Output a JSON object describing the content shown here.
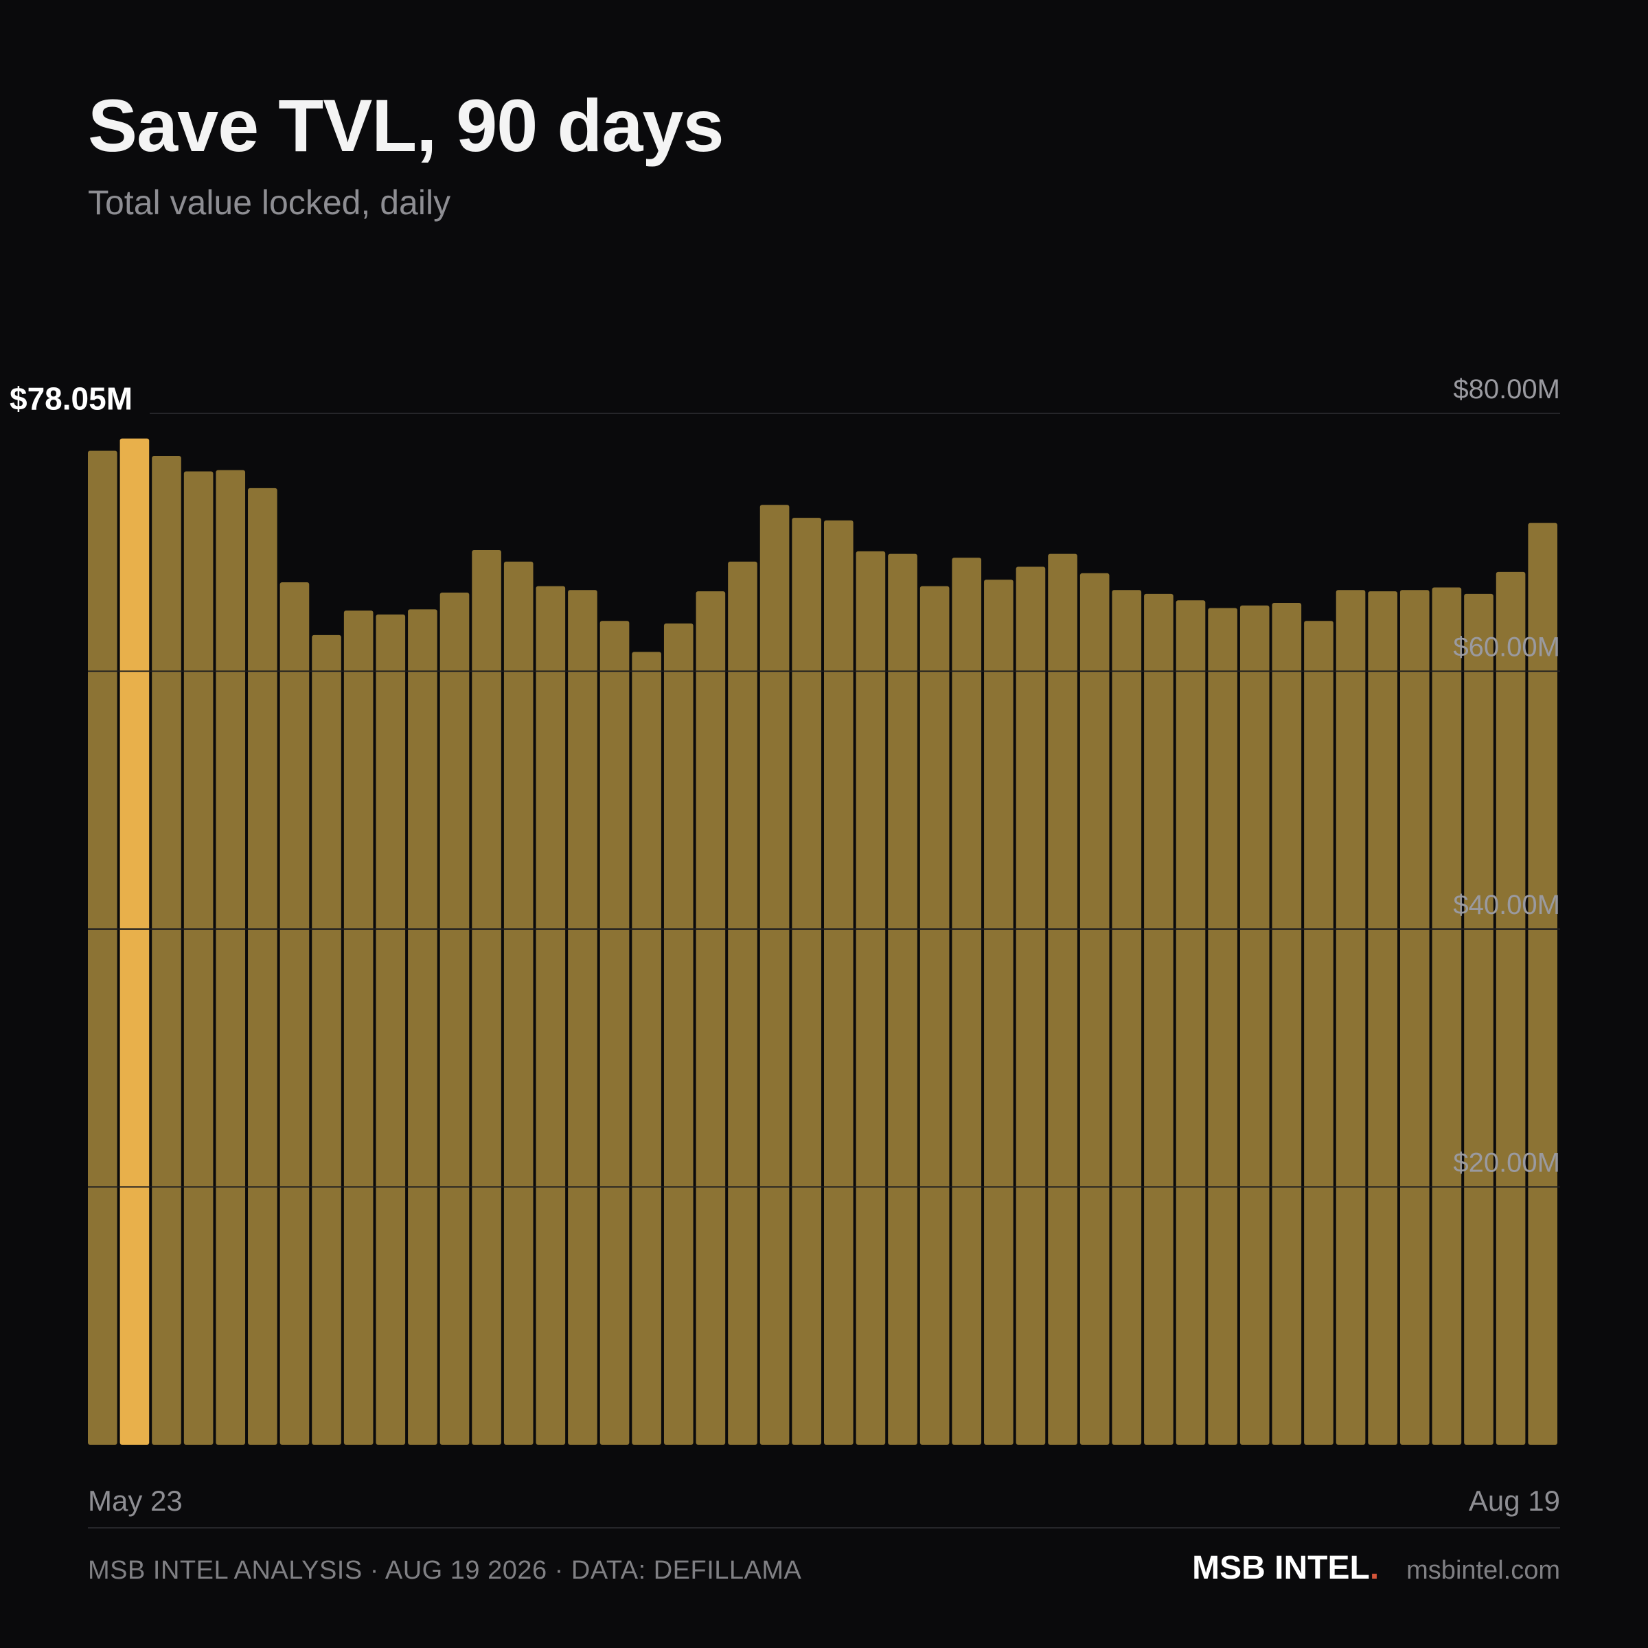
{
  "header": {
    "title": "Save TVL, 90 days",
    "subtitle": "Total value locked, daily"
  },
  "chart_data": {
    "type": "bar",
    "title": "Save TVL, 90 days",
    "subtitle": "Total value locked, daily",
    "values": [
      77.1,
      78.05,
      76.7,
      75.5,
      75.6,
      74.2,
      66.9,
      62.8,
      64.7,
      64.4,
      64.8,
      66.1,
      69.4,
      68.5,
      66.6,
      66.3,
      63.9,
      61.5,
      63.7,
      66.2,
      68.5,
      72.9,
      71.9,
      71.7,
      69.3,
      69.1,
      66.6,
      68.8,
      67.1,
      68.1,
      69.1,
      67.6,
      66.3,
      66.0,
      65.5,
      64.9,
      65.1,
      65.3,
      63.9,
      66.3,
      66.2,
      66.3,
      66.5,
      66.0,
      67.7,
      71.5
    ],
    "x_labels": [
      "May 23",
      "Aug 19"
    ],
    "highlight_index": 1,
    "highlight_label": "$78.05M",
    "y_ticks": [
      {
        "value": 20,
        "label": "$20.00M"
      },
      {
        "value": 40,
        "label": "$40.00M"
      },
      {
        "value": 60,
        "label": "$60.00M"
      },
      {
        "value": 80,
        "label": "$80.00M"
      }
    ],
    "ylim": [
      0,
      80
    ],
    "grid": true,
    "colors": {
      "bar": "#8c7334",
      "highlight": "#e8b04b",
      "grid": "#2b2b2f"
    }
  },
  "footer": {
    "source": "MSB INTEL ANALYSIS · AUG 19 2026 · DATA: DEFILLAMA",
    "brand": "MSB INTEL",
    "brand_dot": ".",
    "site": "msbintel.com"
  }
}
